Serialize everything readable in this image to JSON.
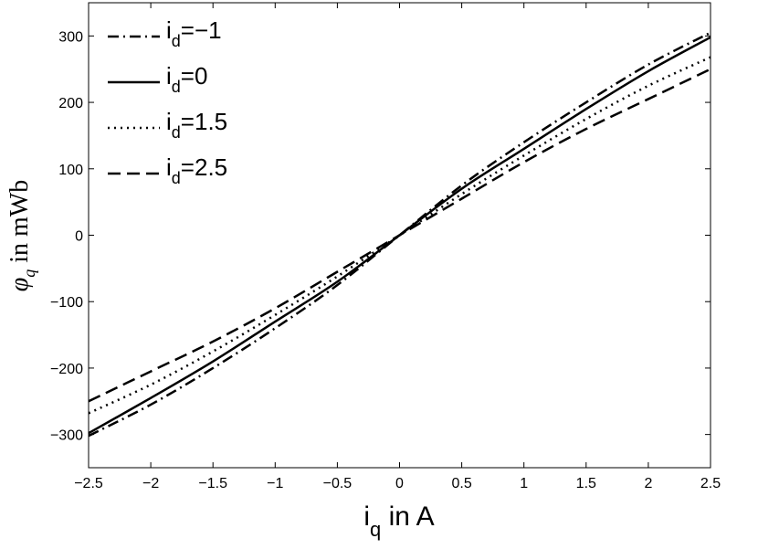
{
  "chart_data": {
    "type": "line",
    "xlabel": {
      "main": "i",
      "sub": "q",
      "rest": " in A"
    },
    "ylabel": {
      "symbol": "φ",
      "sub": "q",
      "rest": " in mWb"
    },
    "xlim": [
      -2.5,
      2.5
    ],
    "ylim": [
      -350,
      350
    ],
    "xticks": [
      -2.5,
      -2,
      -1.5,
      -1,
      -0.5,
      0,
      0.5,
      1,
      1.5,
      2,
      2.5
    ],
    "xtick_labels": [
      "−2.5",
      "−2",
      "−1.5",
      "−1",
      "−0.5",
      "0",
      "0.5",
      "1",
      "1.5",
      "2",
      "2.5"
    ],
    "yticks": [
      -300,
      -200,
      -100,
      0,
      100,
      200,
      300
    ],
    "ytick_labels": [
      "−300",
      "−200",
      "−100",
      "0",
      "100",
      "200",
      "300"
    ],
    "grid": false,
    "legend_position": "top-left",
    "x": [
      -2.5,
      -2.0,
      -1.5,
      -1.0,
      -0.5,
      0,
      0.5,
      1.0,
      1.5,
      2.0,
      2.5
    ],
    "series": [
      {
        "name_main": "i",
        "name_sub": "d",
        "name_rest": "=−1",
        "dash": "dashdot",
        "values": [
          -302,
          -255,
          -200,
          -140,
          -75,
          0,
          75,
          140,
          200,
          257,
          305
        ]
      },
      {
        "name_main": "i",
        "name_sub": "d",
        "name_rest": "=0",
        "dash": "solid",
        "values": [
          -298,
          -245,
          -190,
          -130,
          -70,
          0,
          70,
          130,
          190,
          247,
          298
        ]
      },
      {
        "name_main": "i",
        "name_sub": "d",
        "name_rest": "=1.5",
        "dash": "dotted",
        "values": [
          -268,
          -225,
          -175,
          -120,
          -62,
          0,
          62,
          120,
          175,
          225,
          268
        ]
      },
      {
        "name_main": "i",
        "name_sub": "d",
        "name_rest": "=2.5",
        "dash": "dashed",
        "values": [
          -250,
          -205,
          -160,
          -110,
          -55,
          0,
          55,
          110,
          160,
          205,
          250
        ]
      }
    ]
  }
}
